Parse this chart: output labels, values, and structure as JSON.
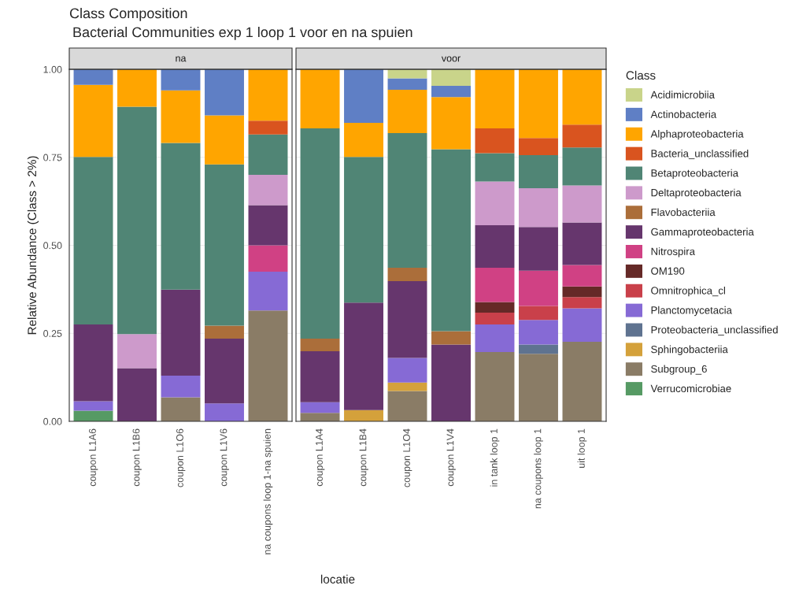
{
  "chart_data": [
    {
      "type": "bar",
      "stacked": true,
      "title": "Class Composition",
      "subtitle": "Bacterial Communities exp 1 loop 1 voor en na spuien",
      "annotations": [
        "na"
      ],
      "xlabel": "locatie",
      "ylabel": "Relative Abundance (Class > 2%)",
      "legend": "right",
      "legend_title": "Class",
      "ylim": [
        0,
        1
      ],
      "yticks": [
        {
          "value": 0,
          "label": "0.00"
        },
        {
          "value": 0.25,
          "label": "0.25"
        },
        {
          "value": 0.5,
          "label": "0.50"
        },
        {
          "value": 0.75,
          "label": "0.75"
        },
        {
          "value": 1,
          "label": "1.00"
        }
      ],
      "grid": "y",
      "categories": [
        "coupon L1A6",
        "coupon L1B6",
        "coupon L1O6",
        "coupon L1V6",
        "na coupons loop 1-na spuien"
      ],
      "series": [
        {
          "name": "Verrucomicrobiae",
          "color": "#569a64",
          "values": [
            0.03,
            null,
            null,
            null,
            null
          ]
        },
        {
          "name": "Subgroup_6",
          "color": "#8a7c66",
          "values": [
            null,
            null,
            0.068,
            null,
            0.315
          ]
        },
        {
          "name": "Sphingobacteriia",
          "color": "#d4a13b",
          "values": [
            null,
            null,
            null,
            null,
            null
          ]
        },
        {
          "name": "Proteobacteria_unclassified",
          "color": "#5f7390",
          "values": [
            null,
            null,
            null,
            null,
            null
          ]
        },
        {
          "name": "Planctomycetacia",
          "color": "#866ad5",
          "values": [
            0.027,
            null,
            0.062,
            0.051,
            0.11
          ]
        },
        {
          "name": "Omnitrophica_cl",
          "color": "#c9404a",
          "values": [
            null,
            null,
            null,
            null,
            null
          ]
        },
        {
          "name": "OM190",
          "color": "#652927",
          "values": [
            null,
            null,
            null,
            null,
            null
          ]
        },
        {
          "name": "Nitrospira",
          "color": "#d04184",
          "values": [
            null,
            null,
            null,
            null,
            0.075
          ]
        },
        {
          "name": "Gammaproteobacteria",
          "color": "#66366d",
          "values": [
            0.218,
            0.151,
            0.244,
            0.184,
            0.114
          ]
        },
        {
          "name": "Flavobacteriia",
          "color": "#ab6e3a",
          "values": [
            null,
            null,
            null,
            0.037,
            null
          ]
        },
        {
          "name": "Deltaproteobacteria",
          "color": "#cd9acb",
          "values": [
            null,
            0.097,
            null,
            null,
            0.086
          ]
        },
        {
          "name": "Betaproteobacteria",
          "color": "#508575",
          "values": [
            0.476,
            0.646,
            0.417,
            0.458,
            0.115
          ]
        },
        {
          "name": "Bacteria_unclassified",
          "color": "#d9541f",
          "values": [
            null,
            null,
            null,
            null,
            0.039
          ]
        },
        {
          "name": "Alphaproteobacteria",
          "color": "#ffa500",
          "values": [
            0.205,
            0.106,
            0.149,
            0.139,
            0.146
          ]
        },
        {
          "name": "Actinobacteria",
          "color": "#5f7fc5",
          "values": [
            0.044,
            null,
            0.06,
            0.131,
            null
          ]
        },
        {
          "name": "Acidimicrobiia",
          "color": "#c9d48a",
          "values": [
            null,
            null,
            null,
            null,
            null
          ]
        }
      ]
    },
    {
      "type": "bar",
      "stacked": true,
      "annotations": [
        "voor"
      ],
      "tick_labels": "x",
      "ylim": [
        0,
        1
      ],
      "yticks": [
        {
          "value": 0,
          "label": null
        },
        {
          "value": 0.25,
          "label": null
        },
        {
          "value": 0.5,
          "label": null
        },
        {
          "value": 0.75,
          "label": null
        },
        {
          "value": 1,
          "label": null
        }
      ],
      "grid": "y",
      "categories": [
        "coupon L1A4",
        "coupon L1B4",
        "coupon L1O4",
        "coupon L1V4",
        "in tank loop 1",
        "na coupons loop 1",
        "uit loop 1"
      ],
      "series": [
        {
          "color": "#569a64",
          "values": [
            null,
            null,
            null,
            null,
            null,
            null,
            null
          ]
        },
        {
          "color": "#8a7c66",
          "values": [
            0.024,
            null,
            0.086,
            null,
            0.197,
            0.192,
            0.226
          ]
        },
        {
          "color": "#d4a13b",
          "values": [
            null,
            0.032,
            0.024,
            null,
            null,
            null,
            null
          ]
        },
        {
          "color": "#5f7390",
          "values": [
            null,
            null,
            null,
            null,
            null,
            0.026,
            null
          ]
        },
        {
          "color": "#866ad5",
          "values": [
            0.03,
            null,
            0.07,
            null,
            0.078,
            0.07,
            0.095
          ]
        },
        {
          "color": "#c9404a",
          "values": [
            null,
            null,
            null,
            null,
            0.034,
            0.04,
            0.032
          ]
        },
        {
          "color": "#652927",
          "values": [
            null,
            null,
            null,
            null,
            0.03,
            null,
            0.03
          ]
        },
        {
          "color": "#d04184",
          "values": [
            null,
            null,
            null,
            null,
            0.097,
            0.1,
            0.061
          ]
        },
        {
          "color": "#66366d",
          "values": [
            0.145,
            0.305,
            0.218,
            0.218,
            0.121,
            0.124,
            0.121
          ]
        },
        {
          "color": "#ab6e3a",
          "values": [
            0.036,
            null,
            0.038,
            0.038,
            null,
            null,
            null
          ]
        },
        {
          "color": "#cd9acb",
          "values": [
            null,
            null,
            null,
            null,
            0.124,
            0.11,
            0.105
          ]
        },
        {
          "color": "#508575",
          "values": [
            0.597,
            0.414,
            0.383,
            0.517,
            0.081,
            0.094,
            0.108
          ]
        },
        {
          "color": "#d9541f",
          "values": [
            null,
            null,
            null,
            null,
            0.07,
            0.049,
            0.065
          ]
        },
        {
          "color": "#ffa500",
          "values": [
            0.168,
            0.097,
            0.123,
            0.148,
            0.168,
            0.195,
            0.157
          ]
        },
        {
          "color": "#5f7fc5",
          "values": [
            null,
            0.152,
            0.032,
            0.032,
            null,
            null,
            null
          ]
        },
        {
          "color": "#c9d48a",
          "values": [
            null,
            null,
            0.026,
            0.047,
            null,
            null,
            null
          ]
        }
      ]
    }
  ]
}
